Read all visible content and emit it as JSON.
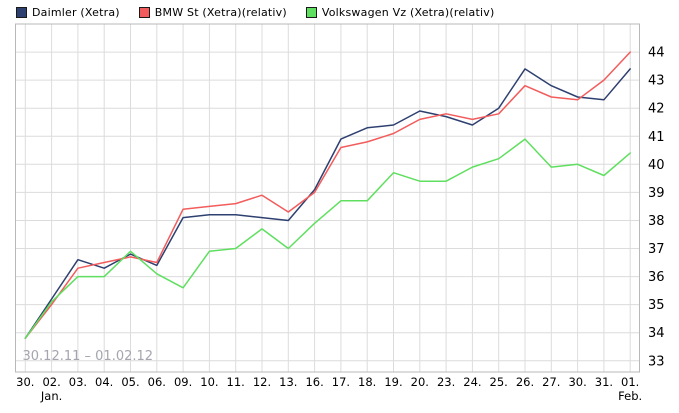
{
  "panel": {
    "background": "#ffffff"
  },
  "legend": {
    "items": [
      {
        "label": "Daimler (Xetra)",
        "color": "#2e4070"
      },
      {
        "label": "BMW St (Xetra)(relativ)",
        "color": "#f25c5c"
      },
      {
        "label": "Volkswagen Vz (Xetra)(relativ)",
        "color": "#5fdf5f"
      }
    ]
  },
  "watermark": {
    "text": "30.12.11 – 01.02.12",
    "color": "#a5a5af"
  },
  "axes": {
    "y_side": "right",
    "y_tick_labels": [
      "44",
      "43",
      "42",
      "41",
      "40",
      "39",
      "38",
      "37",
      "36",
      "35",
      "34",
      "33"
    ],
    "grid_color": "#dcdcdc",
    "border_color": "#b8b8b8",
    "label_color": "#000000"
  },
  "chart_data": {
    "type": "line",
    "title": "",
    "xlabel": "",
    "ylabel": "",
    "categories": [
      "30.",
      "02.",
      "03.",
      "04.",
      "05.",
      "06.",
      "09.",
      "10.",
      "11.",
      "12.",
      "13.",
      "16.",
      "17.",
      "18.",
      "19.",
      "20.",
      "23.",
      "24.",
      "25.",
      "26.",
      "27.",
      "30.",
      "31.",
      "01."
    ],
    "month_labels": [
      {
        "category_index": 1,
        "label": "Jan."
      },
      {
        "category_index": 23,
        "label": "Feb."
      }
    ],
    "series": [
      {
        "name": "Daimler (Xetra)",
        "color": "#2e4070",
        "values": [
          33.8,
          35.2,
          36.6,
          36.3,
          36.8,
          36.4,
          38.1,
          38.2,
          38.2,
          38.1,
          38.0,
          39.1,
          40.9,
          41.3,
          41.4,
          41.9,
          41.7,
          41.4,
          42.0,
          43.4,
          42.8,
          42.4,
          42.3,
          43.4
        ]
      },
      {
        "name": "BMW St (Xetra)(relativ)",
        "color": "#f25c5c",
        "values": [
          33.8,
          35.0,
          36.3,
          36.5,
          36.7,
          36.5,
          38.4,
          38.5,
          38.6,
          38.9,
          38.3,
          39.0,
          40.6,
          40.8,
          41.1,
          41.6,
          41.8,
          41.6,
          41.8,
          42.8,
          42.4,
          42.3,
          43.0,
          44.0
        ]
      },
      {
        "name": "Volkswagen Vz (Xetra)(relativ)",
        "color": "#5fdf5f",
        "values": [
          33.8,
          35.1,
          36.0,
          36.0,
          36.9,
          36.1,
          35.6,
          36.9,
          37.0,
          37.7,
          37.0,
          37.9,
          38.7,
          38.7,
          39.7,
          39.4,
          39.4,
          39.9,
          40.2,
          40.9,
          39.9,
          40.0,
          39.6,
          40.4
        ]
      }
    ],
    "ylim": [
      32.6,
      45.0
    ],
    "yticks": [
      33,
      34,
      35,
      36,
      37,
      38,
      39,
      40,
      41,
      42,
      43,
      44
    ],
    "grid": true,
    "legend_position": "top",
    "date_range_label": "30.12.11 – 01.02.12"
  }
}
